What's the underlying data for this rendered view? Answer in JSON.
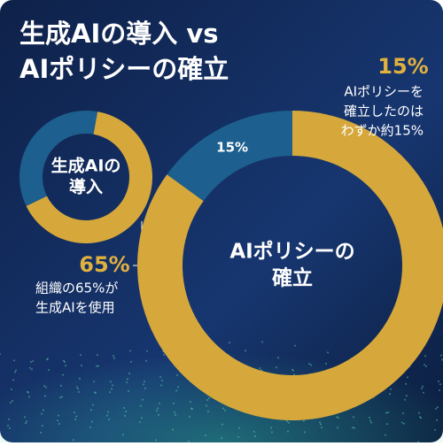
{
  "title": [
    "生成AIの導入 vs",
    "AIポリシーの確立"
  ],
  "chart_data": [
    {
      "type": "pie",
      "donut": true,
      "center_label": [
        "生成AIの",
        "導入"
      ],
      "values": [
        65,
        35
      ],
      "colors": [
        "#d6a83c",
        "#1d5f8e"
      ],
      "callout": {
        "label": "65%",
        "text": [
          "組織の65%が",
          "生成AIを使用"
        ]
      }
    },
    {
      "type": "pie",
      "donut": true,
      "center_label": [
        "AIポリシーの",
        "確立"
      ],
      "values": [
        85,
        15
      ],
      "colors": [
        "#d6a83c",
        "#1d5f8e"
      ],
      "segment_label": "15%",
      "callout": {
        "label": "15%",
        "text": [
          "AIポリシーを",
          "確立したのは",
          "わずか約15%"
        ]
      }
    }
  ]
}
